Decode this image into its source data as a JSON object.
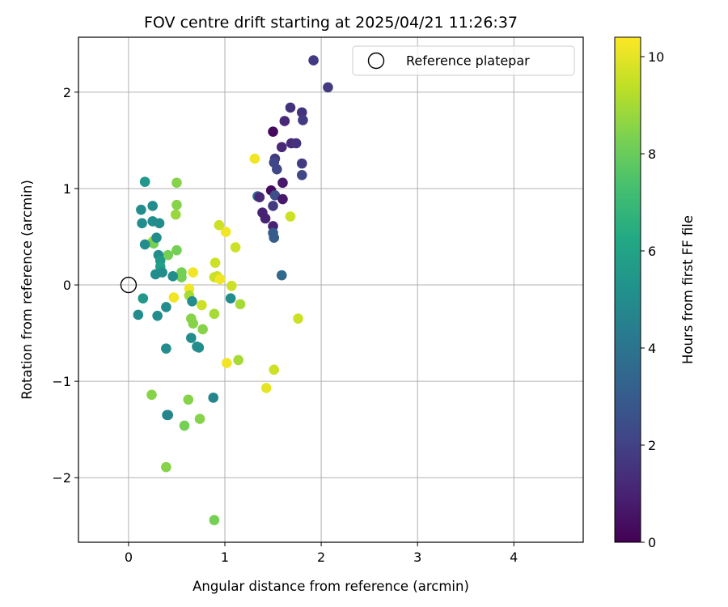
{
  "chart_data": {
    "type": "scatter",
    "title": "FOV centre drift starting at 2025/04/21 11:26:37",
    "xlabel": "Angular distance from reference (arcmin)",
    "ylabel": "Rotation from reference (arcmin)",
    "xlim": [
      -0.52,
      4.72
    ],
    "ylim": [
      -2.67,
      2.57
    ],
    "xticks": [
      0,
      1,
      2,
      3,
      4
    ],
    "xtick_labels": [
      "0",
      "1",
      "2",
      "3",
      "4"
    ],
    "yticks": [
      -2,
      -1,
      0,
      1,
      2
    ],
    "ytick_labels": [
      "−2",
      "−1",
      "0",
      "1",
      "2"
    ],
    "grid": true,
    "legend": {
      "placement": "top-right",
      "entries": [
        "Reference platepar"
      ]
    },
    "reference_point": {
      "x": 0,
      "y": 0,
      "label": "Reference platepar"
    },
    "colorbar": {
      "label": "Hours from first FF file",
      "colormap": "viridis",
      "range": [
        0,
        10.4
      ],
      "ticks": [
        0,
        2,
        4,
        6,
        8,
        10
      ],
      "tick_labels": [
        "0",
        "2",
        "4",
        "6",
        "8",
        "10"
      ]
    },
    "points": [
      {
        "x": 1.92,
        "y": 2.33,
        "c": 1.8
      },
      {
        "x": 2.07,
        "y": 2.05,
        "c": 1.8
      },
      {
        "x": 1.68,
        "y": 1.84,
        "c": 1.5
      },
      {
        "x": 1.8,
        "y": 1.79,
        "c": 1.5
      },
      {
        "x": 1.62,
        "y": 1.7,
        "c": 1.2
      },
      {
        "x": 1.81,
        "y": 1.71,
        "c": 1.8
      },
      {
        "x": 1.5,
        "y": 1.59,
        "c": 0.2
      },
      {
        "x": 1.69,
        "y": 1.47,
        "c": 1.2
      },
      {
        "x": 1.74,
        "y": 1.47,
        "c": 1.5
      },
      {
        "x": 1.59,
        "y": 1.43,
        "c": 1.2
      },
      {
        "x": 1.52,
        "y": 1.31,
        "c": 1.8
      },
      {
        "x": 1.51,
        "y": 1.27,
        "c": 2.2
      },
      {
        "x": 1.8,
        "y": 1.26,
        "c": 1.8
      },
      {
        "x": 1.54,
        "y": 1.2,
        "c": 2.2
      },
      {
        "x": 1.8,
        "y": 1.14,
        "c": 2.2
      },
      {
        "x": 1.6,
        "y": 1.06,
        "c": 0.7
      },
      {
        "x": 1.48,
        "y": 0.98,
        "c": 0.3
      },
      {
        "x": 1.34,
        "y": 0.92,
        "c": 3.3
      },
      {
        "x": 1.36,
        "y": 0.91,
        "c": 1.2
      },
      {
        "x": 1.52,
        "y": 0.93,
        "c": 2.5
      },
      {
        "x": 1.6,
        "y": 0.89,
        "c": 0.7
      },
      {
        "x": 1.5,
        "y": 0.82,
        "c": 1.8
      },
      {
        "x": 1.39,
        "y": 0.75,
        "c": 1.0
      },
      {
        "x": 1.42,
        "y": 0.69,
        "c": 1.0
      },
      {
        "x": 1.5,
        "y": 0.61,
        "c": 1.0
      },
      {
        "x": 1.5,
        "y": 0.54,
        "c": 3.0
      },
      {
        "x": 1.51,
        "y": 0.49,
        "c": 3.0
      },
      {
        "x": 1.59,
        "y": 0.1,
        "c": 3.5
      },
      {
        "x": 1.31,
        "y": 1.31,
        "c": 10.2
      },
      {
        "x": 1.68,
        "y": 0.71,
        "c": 9.6
      },
      {
        "x": 1.76,
        "y": -0.35,
        "c": 9.6
      },
      {
        "x": 1.51,
        "y": -0.88,
        "c": 9.6
      },
      {
        "x": 1.43,
        "y": -1.07,
        "c": 10.0
      },
      {
        "x": 1.14,
        "y": -0.78,
        "c": 9.0
      },
      {
        "x": 1.02,
        "y": -0.81,
        "c": 10.2
      },
      {
        "x": 1.16,
        "y": -0.2,
        "c": 9.0
      },
      {
        "x": 1.07,
        "y": -0.01,
        "c": 9.6
      },
      {
        "x": 1.11,
        "y": 0.39,
        "c": 9.6
      },
      {
        "x": 1.01,
        "y": 0.55,
        "c": 10.2
      },
      {
        "x": 0.94,
        "y": 0.62,
        "c": 9.6
      },
      {
        "x": 0.9,
        "y": 0.23,
        "c": 9.6
      },
      {
        "x": 0.92,
        "y": 0.09,
        "c": 9.6
      },
      {
        "x": 0.89,
        "y": 0.08,
        "c": 9.6
      },
      {
        "x": 0.95,
        "y": 0.06,
        "c": 10.2
      },
      {
        "x": 0.89,
        "y": -0.3,
        "c": 9.0
      },
      {
        "x": 0.76,
        "y": -0.21,
        "c": 9.6
      },
      {
        "x": 0.67,
        "y": 0.13,
        "c": 10.2
      },
      {
        "x": 0.63,
        "y": -0.04,
        "c": 10.2
      },
      {
        "x": 0.63,
        "y": -0.11,
        "c": 9.0
      },
      {
        "x": 0.65,
        "y": -0.35,
        "c": 8.5
      },
      {
        "x": 0.67,
        "y": -0.4,
        "c": 8.5
      },
      {
        "x": 0.77,
        "y": -0.46,
        "c": 8.5
      },
      {
        "x": 0.47,
        "y": -0.13,
        "c": 10.2
      },
      {
        "x": 0.55,
        "y": 0.13,
        "c": 8.2
      },
      {
        "x": 0.55,
        "y": 0.08,
        "c": 8.2
      },
      {
        "x": 0.5,
        "y": 0.36,
        "c": 8.2
      },
      {
        "x": 0.41,
        "y": 0.31,
        "c": 8.2
      },
      {
        "x": 0.49,
        "y": 0.73,
        "c": 8.8
      },
      {
        "x": 0.5,
        "y": 0.83,
        "c": 8.5
      },
      {
        "x": 0.5,
        "y": 1.06,
        "c": 8.5
      },
      {
        "x": 0.25,
        "y": 0.45,
        "c": 9.0
      },
      {
        "x": 0.26,
        "y": 0.43,
        "c": 8.2
      },
      {
        "x": 0.62,
        "y": -1.19,
        "c": 8.5
      },
      {
        "x": 0.74,
        "y": -1.39,
        "c": 8.5
      },
      {
        "x": 0.58,
        "y": -1.46,
        "c": 8.2
      },
      {
        "x": 0.24,
        "y": -1.14,
        "c": 8.5
      },
      {
        "x": 0.39,
        "y": -1.89,
        "c": 8.5
      },
      {
        "x": 0.89,
        "y": -2.44,
        "c": 8.2
      },
      {
        "x": 0.17,
        "y": 1.07,
        "c": 5.5
      },
      {
        "x": 0.13,
        "y": 0.78,
        "c": 5.0
      },
      {
        "x": 0.25,
        "y": 0.82,
        "c": 5.0
      },
      {
        "x": 0.14,
        "y": 0.64,
        "c": 5.0
      },
      {
        "x": 0.25,
        "y": 0.66,
        "c": 5.0
      },
      {
        "x": 0.32,
        "y": 0.64,
        "c": 5.0
      },
      {
        "x": 0.17,
        "y": 0.42,
        "c": 5.0
      },
      {
        "x": 0.29,
        "y": 0.49,
        "c": 5.0
      },
      {
        "x": 0.31,
        "y": 0.31,
        "c": 5.0
      },
      {
        "x": 0.33,
        "y": 0.25,
        "c": 5.5
      },
      {
        "x": 0.33,
        "y": 0.19,
        "c": 5.8
      },
      {
        "x": 0.28,
        "y": 0.11,
        "c": 5.0
      },
      {
        "x": 0.35,
        "y": 0.13,
        "c": 5.0
      },
      {
        "x": 0.46,
        "y": 0.09,
        "c": 5.0
      },
      {
        "x": 0.15,
        "y": -0.14,
        "c": 5.5
      },
      {
        "x": 0.1,
        "y": -0.31,
        "c": 5.0
      },
      {
        "x": 0.3,
        "y": -0.32,
        "c": 5.0
      },
      {
        "x": 0.39,
        "y": -0.23,
        "c": 5.0
      },
      {
        "x": 0.66,
        "y": -0.17,
        "c": 5.0
      },
      {
        "x": 0.65,
        "y": -0.55,
        "c": 5.0
      },
      {
        "x": 0.71,
        "y": -0.64,
        "c": 5.0
      },
      {
        "x": 0.73,
        "y": -0.65,
        "c": 5.0
      },
      {
        "x": 0.39,
        "y": -0.66,
        "c": 5.0
      },
      {
        "x": 1.06,
        "y": -0.14,
        "c": 5.0
      },
      {
        "x": 0.88,
        "y": -1.17,
        "c": 4.7
      },
      {
        "x": 0.4,
        "y": -1.35,
        "c": 4.7
      },
      {
        "x": 0.41,
        "y": -1.35,
        "c": 4.7
      }
    ]
  }
}
